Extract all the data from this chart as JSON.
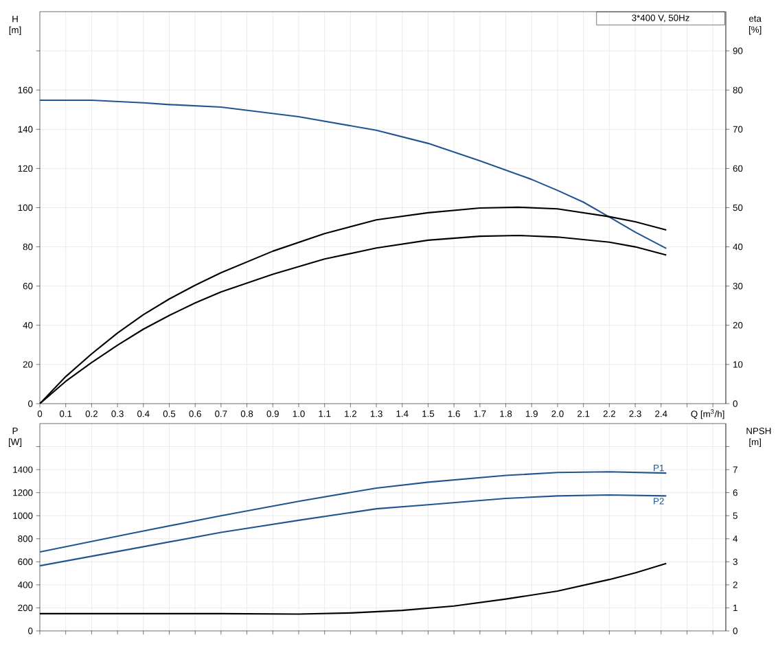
{
  "chart_data": [
    {
      "type": "line",
      "xlabel": "Q [m$^{3}$/h]",
      "ylabel": "H [m]",
      "y2label": "eta [%]",
      "annotations": [
        "3*400 V, 50Hz"
      ],
      "grid": true,
      "xlim": [
        0,
        2.65
      ],
      "xticks": [
        0,
        0.1,
        0.2,
        0.3,
        0.4,
        0.5,
        0.6,
        0.7,
        0.8,
        0.9,
        {
          "value": 1,
          "label": "1.0"
        },
        1.1,
        1.2,
        1.3,
        1.4,
        1.5,
        1.6,
        1.7,
        1.8,
        1.9,
        {
          "value": 2,
          "label": "2.0"
        },
        2.1,
        2.2,
        2.3,
        2.4,
        {
          "value": 2.5,
          "label": null
        },
        {
          "value": 2.6,
          "label": null
        }
      ],
      "ylim": [
        0,
        200
      ],
      "yticks": [
        0,
        20,
        40,
        60,
        80,
        100,
        120,
        140,
        160,
        {
          "value": 180,
          "label": null
        }
      ],
      "y2lim": [
        0,
        100
      ],
      "y2ticks": [
        0,
        10,
        20,
        30,
        40,
        50,
        60,
        70,
        80,
        90
      ],
      "series": [
        {
          "color": "#1f5591",
          "x": [
            0,
            0.2,
            0.4,
            0.5,
            0.7,
            1.0,
            1.3,
            1.5,
            1.7,
            1.9,
            2.0,
            2.1,
            2.2,
            2.3,
            2.42
          ],
          "values": [
            154.8,
            154.8,
            153.5,
            152.6,
            151.3,
            146.4,
            139.5,
            132.8,
            123.9,
            114.4,
            108.8,
            102.8,
            95.2,
            87.5,
            79.2
          ]
        },
        {
          "color": "#000000",
          "axis": "y2",
          "x": [
            0,
            0.1,
            0.2,
            0.3,
            0.4,
            0.5,
            0.6,
            0.7,
            0.9,
            1.1,
            1.3,
            1.5,
            1.7,
            1.85,
            2.0,
            2.2,
            2.3,
            2.42
          ],
          "values": [
            0,
            6.9,
            12.7,
            18,
            22.7,
            26.7,
            30.2,
            33.4,
            38.9,
            43.4,
            46.9,
            48.7,
            49.9,
            50.1,
            49.7,
            47.7,
            46.4,
            44.3
          ]
        },
        {
          "color": "#000000",
          "axis": "y2",
          "x": [
            0,
            0.1,
            0.2,
            0.3,
            0.4,
            0.5,
            0.6,
            0.7,
            0.9,
            1.1,
            1.3,
            1.5,
            1.7,
            1.85,
            2.0,
            2.2,
            2.3,
            2.42
          ],
          "values": [
            0,
            5.7,
            10.5,
            14.9,
            19,
            22.5,
            25.7,
            28.5,
            33,
            36.9,
            39.7,
            41.7,
            42.7,
            42.9,
            42.5,
            41.2,
            40,
            37.9
          ]
        }
      ]
    },
    {
      "type": "line",
      "ylabel": "P [W]",
      "y2label": "NPSH [m]",
      "grid": true,
      "tick_labels": "y",
      "xlim": [
        0,
        2.65
      ],
      "xticks": [
        0,
        0.1,
        0.2,
        0.3,
        0.4,
        0.5,
        0.6,
        0.7,
        0.8,
        0.9,
        1.0,
        1.1,
        1.2,
        1.3,
        1.4,
        1.5,
        1.6,
        1.7,
        1.8,
        1.9,
        2.0,
        2.1,
        2.2,
        2.3,
        2.4,
        2.5,
        2.6
      ],
      "ylim": [
        0,
        1800
      ],
      "yticks": [
        0,
        200,
        400,
        600,
        800,
        1000,
        1200,
        1400,
        {
          "value": 1600,
          "label": null
        }
      ],
      "y2lim": [
        0,
        9
      ],
      "y2ticks": [
        0,
        1,
        2,
        3,
        4,
        5,
        6,
        7,
        {
          "value": 8,
          "label": null
        }
      ],
      "series": [
        {
          "name": "P1",
          "color": "#1f5591",
          "x": [
            0,
            0.35,
            0.7,
            1.0,
            1.3,
            1.5,
            1.8,
            2.0,
            2.2,
            2.42
          ],
          "values": [
            685,
            845,
            1000,
            1125,
            1240,
            1291,
            1350,
            1375,
            1381,
            1370
          ]
        },
        {
          "name": "P2",
          "color": "#1f5591",
          "x": [
            0,
            0.35,
            0.7,
            1.0,
            1.3,
            1.5,
            1.8,
            2.0,
            2.2,
            2.42
          ],
          "values": [
            565,
            710,
            855,
            960,
            1060,
            1095,
            1150,
            1172,
            1180,
            1172
          ]
        },
        {
          "color": "#000000",
          "axis": "y2",
          "x": [
            0,
            0.7,
            1.0,
            1.2,
            1.4,
            1.6,
            1.8,
            2.0,
            2.2,
            2.3,
            2.42
          ],
          "values": [
            0.75,
            0.75,
            0.73,
            0.78,
            0.89,
            1.08,
            1.38,
            1.73,
            2.23,
            2.52,
            2.93
          ]
        }
      ]
    }
  ]
}
